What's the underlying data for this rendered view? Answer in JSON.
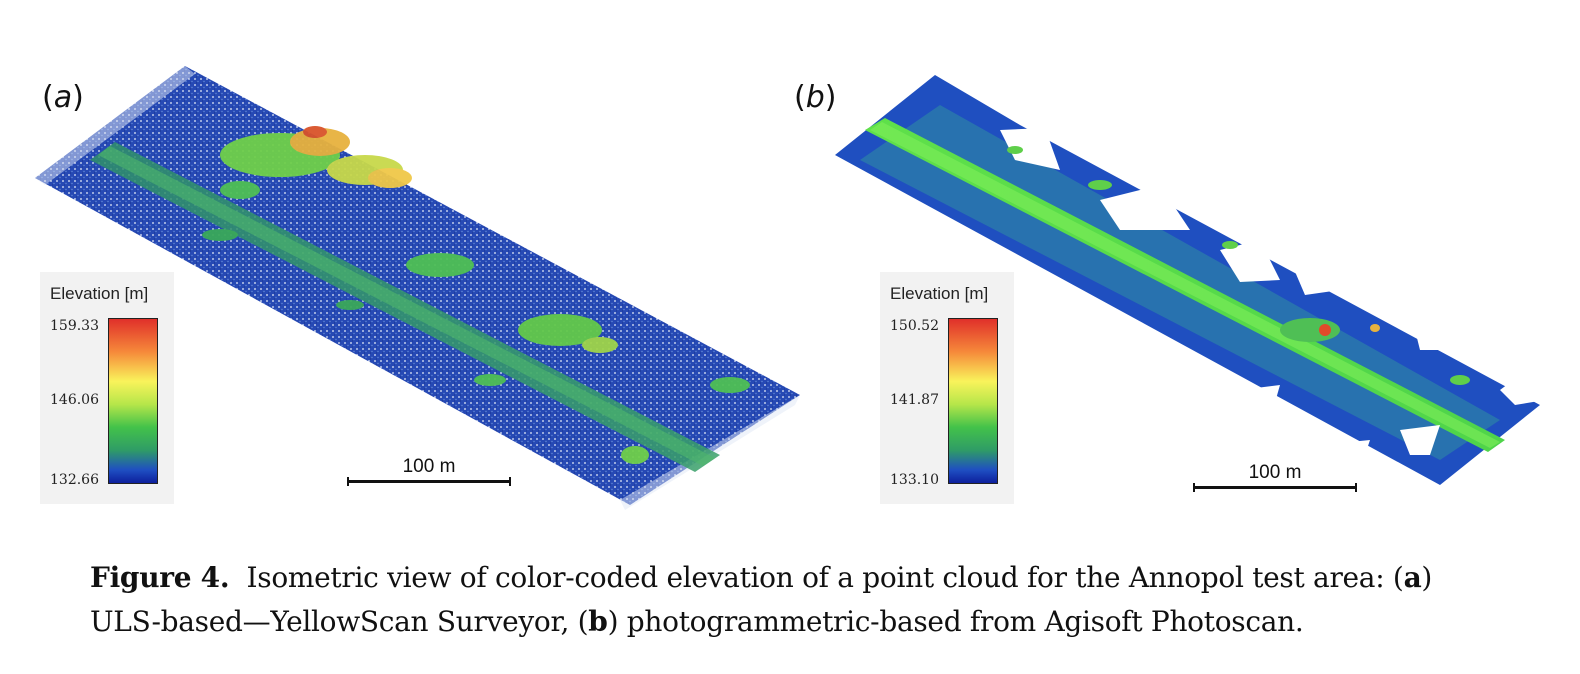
{
  "panels": [
    {
      "label": "a",
      "legend": {
        "title": "Elevation [m]",
        "max": "159.33",
        "mid": "146.06",
        "min": "132.66"
      },
      "scale_label": "100 m"
    },
    {
      "label": "b",
      "legend": {
        "title": "Elevation [m]",
        "max": "150.52",
        "mid": "141.87",
        "min": "133.10"
      },
      "scale_label": "100 m"
    }
  ],
  "caption": {
    "figure_label": "Figure 4.",
    "line1_text": "Isometric view of color-coded elevation of a point cloud for the Annopol test area: (",
    "line1_a": "a",
    "line1_end": ")",
    "line2_text": "ULS-based—YellowScan Surveyor, (",
    "line2_b": "b",
    "line2_end": ") photogrammetric-based from Agisoft Photoscan."
  },
  "colors": {
    "ground_blue": "#1c44b8",
    "road_green": "#3fa855",
    "road_bright": "#5fe04a",
    "tree_yellow": "#f2d24a",
    "tree_red": "#e04a2a"
  }
}
